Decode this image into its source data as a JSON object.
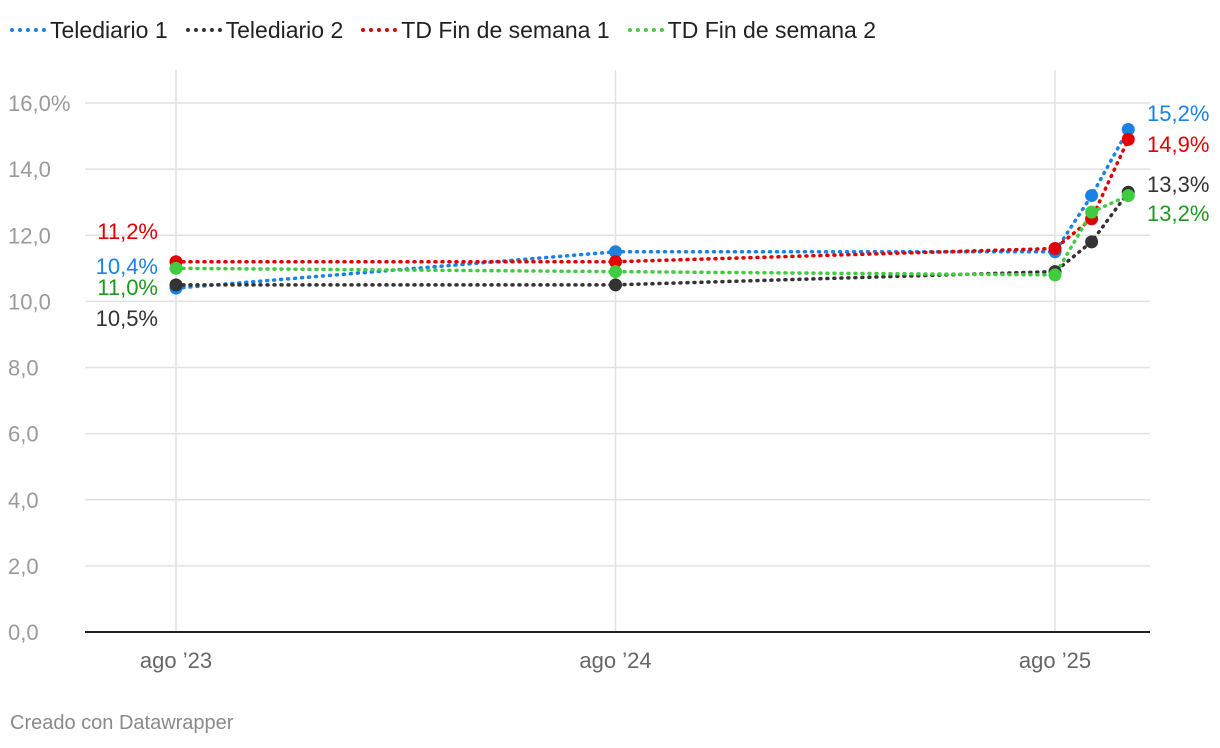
{
  "chart_data": {
    "type": "line",
    "title": "",
    "xlabel": "",
    "ylabel": "",
    "ylim": [
      0,
      16.9
    ],
    "yticks": [
      0,
      2,
      4,
      6,
      8,
      10,
      12,
      14,
      16
    ],
    "ytick_labels": [
      "0,0",
      "2,0",
      "4,0",
      "6,0",
      "8,0",
      "10,0",
      "12,0",
      "14,0",
      "16,0%"
    ],
    "xticks": [
      0,
      12,
      24
    ],
    "xtick_labels": [
      "ago ’23",
      "ago ’24",
      "ago ’25"
    ],
    "xlim": [
      -2.5,
      26.5
    ],
    "grid": true,
    "legend_position": "top-left",
    "x": [
      0,
      12,
      24,
      25,
      26
    ],
    "series": [
      {
        "name": "Telediario 1",
        "color": "#1a82e2",
        "values": [
          10.4,
          11.5,
          11.5,
          13.2,
          15.2
        ],
        "start_label": "10,4%",
        "end_label": "15,2%"
      },
      {
        "name": "Telediario 2",
        "color": "#333333",
        "values": [
          10.5,
          10.5,
          10.9,
          11.8,
          13.3
        ],
        "start_label": "10,5%",
        "end_label": "13,3%"
      },
      {
        "name": "TD Fin de semana 1",
        "color": "#e00000",
        "values": [
          11.2,
          11.2,
          11.6,
          12.5,
          14.9
        ],
        "start_label": "11,2%",
        "end_label": "14,9%"
      },
      {
        "name": "TD Fin de semana 2",
        "color": "#3fcc3f",
        "values": [
          11.0,
          10.9,
          10.8,
          12.7,
          13.2
        ],
        "start_label": "11,0%",
        "end_label": "13,2%",
        "label_color": "#1e9a1e"
      }
    ]
  },
  "footer": {
    "credit": "Creado con Datawrapper"
  }
}
